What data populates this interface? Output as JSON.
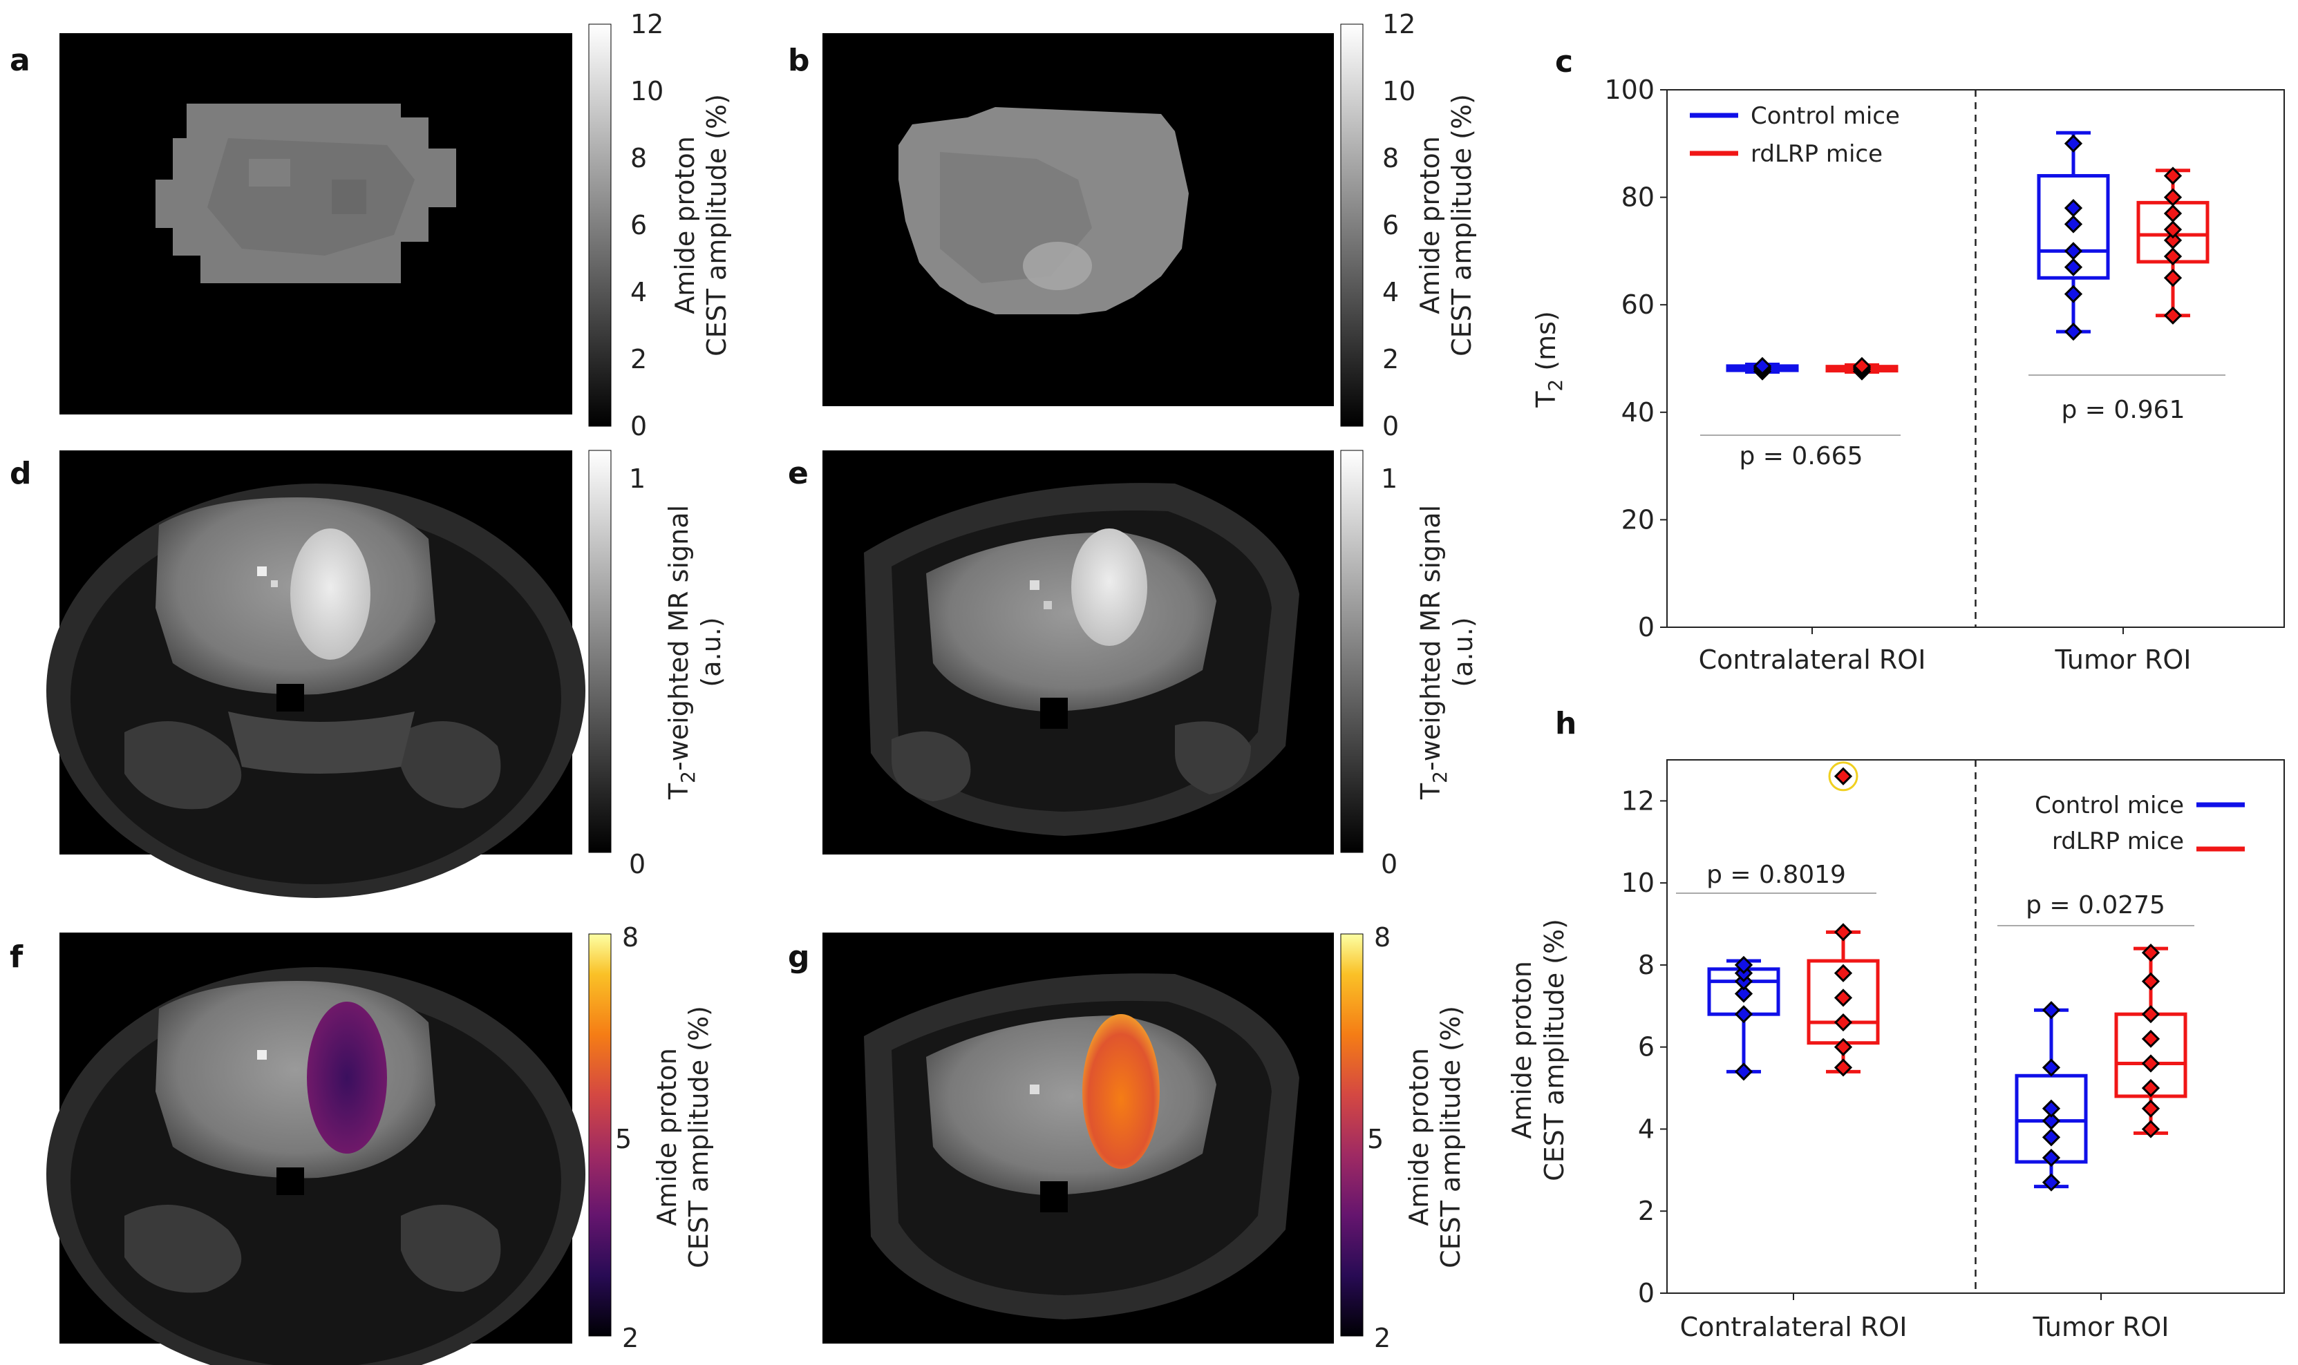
{
  "colors": {
    "control": "#1010e8",
    "rdlrp": "#f01616",
    "outlier_ring": "#f0d020",
    "panel_bg": "#000000"
  },
  "panels": {
    "a": {
      "label": "a"
    },
    "b": {
      "label": "b"
    },
    "d": {
      "label": "d"
    },
    "e": {
      "label": "e"
    },
    "f": {
      "label": "f"
    },
    "g": {
      "label": "g"
    }
  },
  "colorbars": {
    "cest_gray": {
      "title_line1": "Amide proton",
      "title_line2": "CEST amplitude (%)",
      "ticks": [
        "0",
        "2",
        "4",
        "6",
        "8",
        "10",
        "12"
      ]
    },
    "t2_gray": {
      "title_line1": "T",
      "title_sub": "2",
      "title_line1_rest": "-weighted MR signal",
      "title_line2": "(a.u.)",
      "ticks": [
        "0",
        "1"
      ]
    },
    "cest_inferno": {
      "title_line1": "Amide proton",
      "title_line2": "CEST amplitude (%)",
      "ticks": [
        "2",
        "5",
        "8"
      ]
    }
  },
  "chart_data": [
    {
      "panel": "c",
      "type": "box",
      "title": "",
      "ylabel_main": "T",
      "ylabel_sub": "2",
      "ylabel_rest": " (ms)",
      "ylim": [
        0,
        100
      ],
      "yticks": [
        "0",
        "20",
        "40",
        "60",
        "80",
        "100"
      ],
      "groups": [
        "Contralateral ROI",
        "Tumor ROI"
      ],
      "legend": [
        "Control mice",
        "rdLRP mice"
      ],
      "legend_position": "top-left",
      "series": [
        {
          "name": "Control mice",
          "group": "Contralateral ROI",
          "whislo": 47.5,
          "q1": 47.8,
          "med": 48.2,
          "q3": 48.6,
          "whishi": 48.9,
          "points": [
            47.6,
            48.0,
            48.3,
            48.6
          ]
        },
        {
          "name": "rdLRP mice",
          "group": "Contralateral ROI",
          "whislo": 47.5,
          "q1": 47.9,
          "med": 48.2,
          "q3": 48.5,
          "whishi": 48.8,
          "points": [
            47.6,
            48.0,
            48.3,
            48.6
          ]
        },
        {
          "name": "Control mice",
          "group": "Tumor ROI",
          "whislo": 55,
          "q1": 65,
          "med": 70,
          "q3": 84,
          "whishi": 92,
          "points": [
            55,
            62,
            67,
            70,
            75,
            78,
            90
          ]
        },
        {
          "name": "rdLRP mice",
          "group": "Tumor ROI",
          "whislo": 58,
          "q1": 68,
          "med": 73,
          "q3": 79,
          "whishi": 85,
          "points": [
            58,
            65,
            69,
            72,
            74,
            77,
            80,
            84
          ]
        }
      ],
      "pvalues": [
        {
          "group": "Contralateral ROI",
          "text": "p = 0.665"
        },
        {
          "group": "Tumor ROI",
          "text": "p = 0.961"
        }
      ]
    },
    {
      "panel": "h",
      "type": "box",
      "title": "",
      "ylabel_line1": "Amide proton",
      "ylabel_line2": "CEST amplitude (%)",
      "ylim": [
        0,
        13
      ],
      "yticks": [
        "0",
        "2",
        "4",
        "6",
        "8",
        "10",
        "12"
      ],
      "groups": [
        "Contralateral ROI",
        "Tumor ROI"
      ],
      "legend": [
        "Control mice",
        "rdLRP mice"
      ],
      "legend_position": "top-right",
      "series": [
        {
          "name": "Control mice",
          "group": "Contralateral ROI",
          "whislo": 5.4,
          "q1": 6.8,
          "med": 7.6,
          "q3": 7.9,
          "whishi": 8.1,
          "points": [
            5.4,
            6.8,
            7.3,
            7.6,
            7.8,
            8.0
          ]
        },
        {
          "name": "rdLRP mice",
          "group": "Contralateral ROI",
          "whislo": 5.4,
          "q1": 6.1,
          "med": 6.6,
          "q3": 8.1,
          "whishi": 8.8,
          "points": [
            5.5,
            6.0,
            6.6,
            7.2,
            7.8,
            8.8,
            12.6
          ]
        },
        {
          "name": "Control mice",
          "group": "Tumor ROI",
          "whislo": 2.6,
          "q1": 3.2,
          "med": 4.2,
          "q3": 5.3,
          "whishi": 6.9,
          "points": [
            2.7,
            3.3,
            3.8,
            4.2,
            4.5,
            5.5,
            6.9
          ]
        },
        {
          "name": "rdLRP mice",
          "group": "Tumor ROI",
          "whislo": 3.9,
          "q1": 4.8,
          "med": 5.6,
          "q3": 6.8,
          "whishi": 8.4,
          "points": [
            4.0,
            4.5,
            5.0,
            5.6,
            6.2,
            6.8,
            7.6,
            8.3
          ]
        }
      ],
      "outlier_circled": 12.6,
      "pvalues": [
        {
          "group": "Contralateral ROI",
          "text": "p = 0.8019"
        },
        {
          "group": "Tumor ROI",
          "text": "p = 0.0275"
        }
      ]
    }
  ]
}
